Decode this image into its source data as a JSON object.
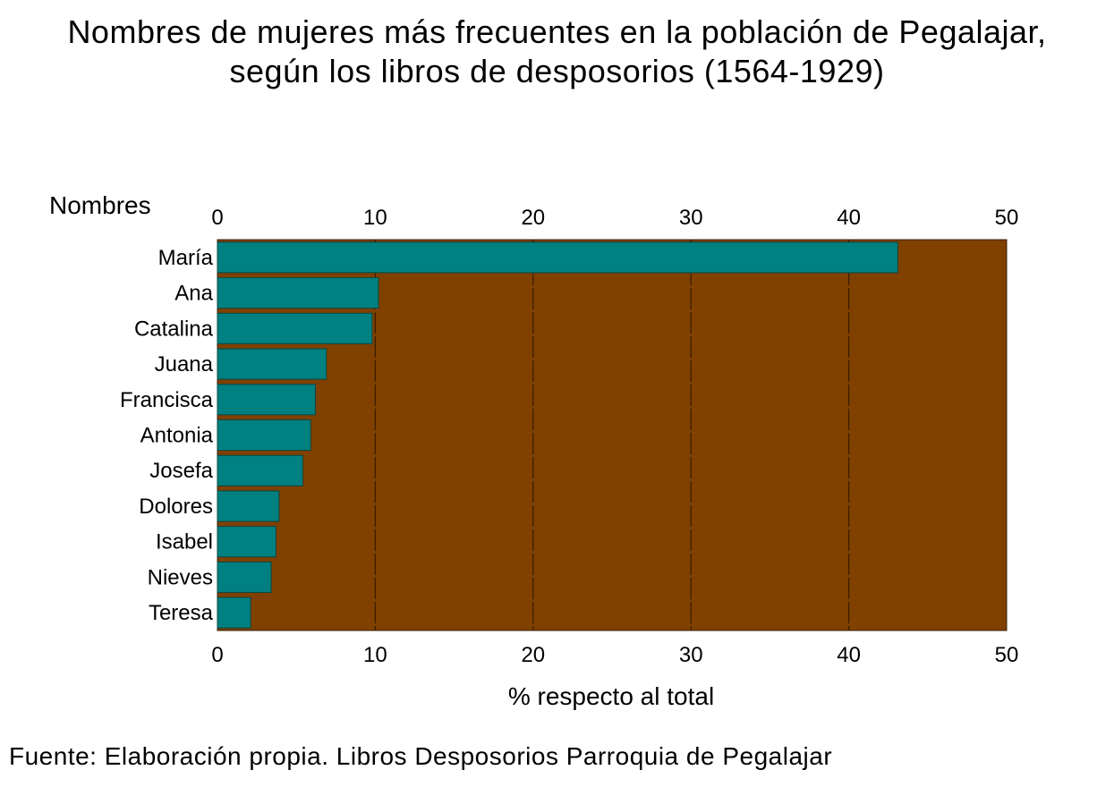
{
  "title": {
    "line1": "Nombres de mujeres más frecuentes en la población de Pegalajar,",
    "line2": "según los libros de desposorios (1564-1929)"
  },
  "source": "Fuente: Elaboración propia. Libros Desposorios Parroquia de Pegalajar",
  "colors": {
    "bar": "#008080",
    "plot_background": "#7f4000",
    "grid": "#3a1d00"
  },
  "chart_data": {
    "type": "bar",
    "orientation": "horizontal",
    "ylabel": "Nombres",
    "xlabel": "% respecto al total",
    "xlim": [
      0,
      50
    ],
    "xticks": [
      0,
      10,
      20,
      30,
      40,
      50
    ],
    "grid": true,
    "categories": [
      "María",
      "Ana",
      "Catalina",
      "Juana",
      "Francisca",
      "Antonia",
      "Josefa",
      "Dolores",
      "Isabel",
      "Nieves",
      "Teresa"
    ],
    "values": [
      43.1,
      10.2,
      9.8,
      6.9,
      6.2,
      5.9,
      5.4,
      3.9,
      3.7,
      3.4,
      2.1
    ]
  }
}
